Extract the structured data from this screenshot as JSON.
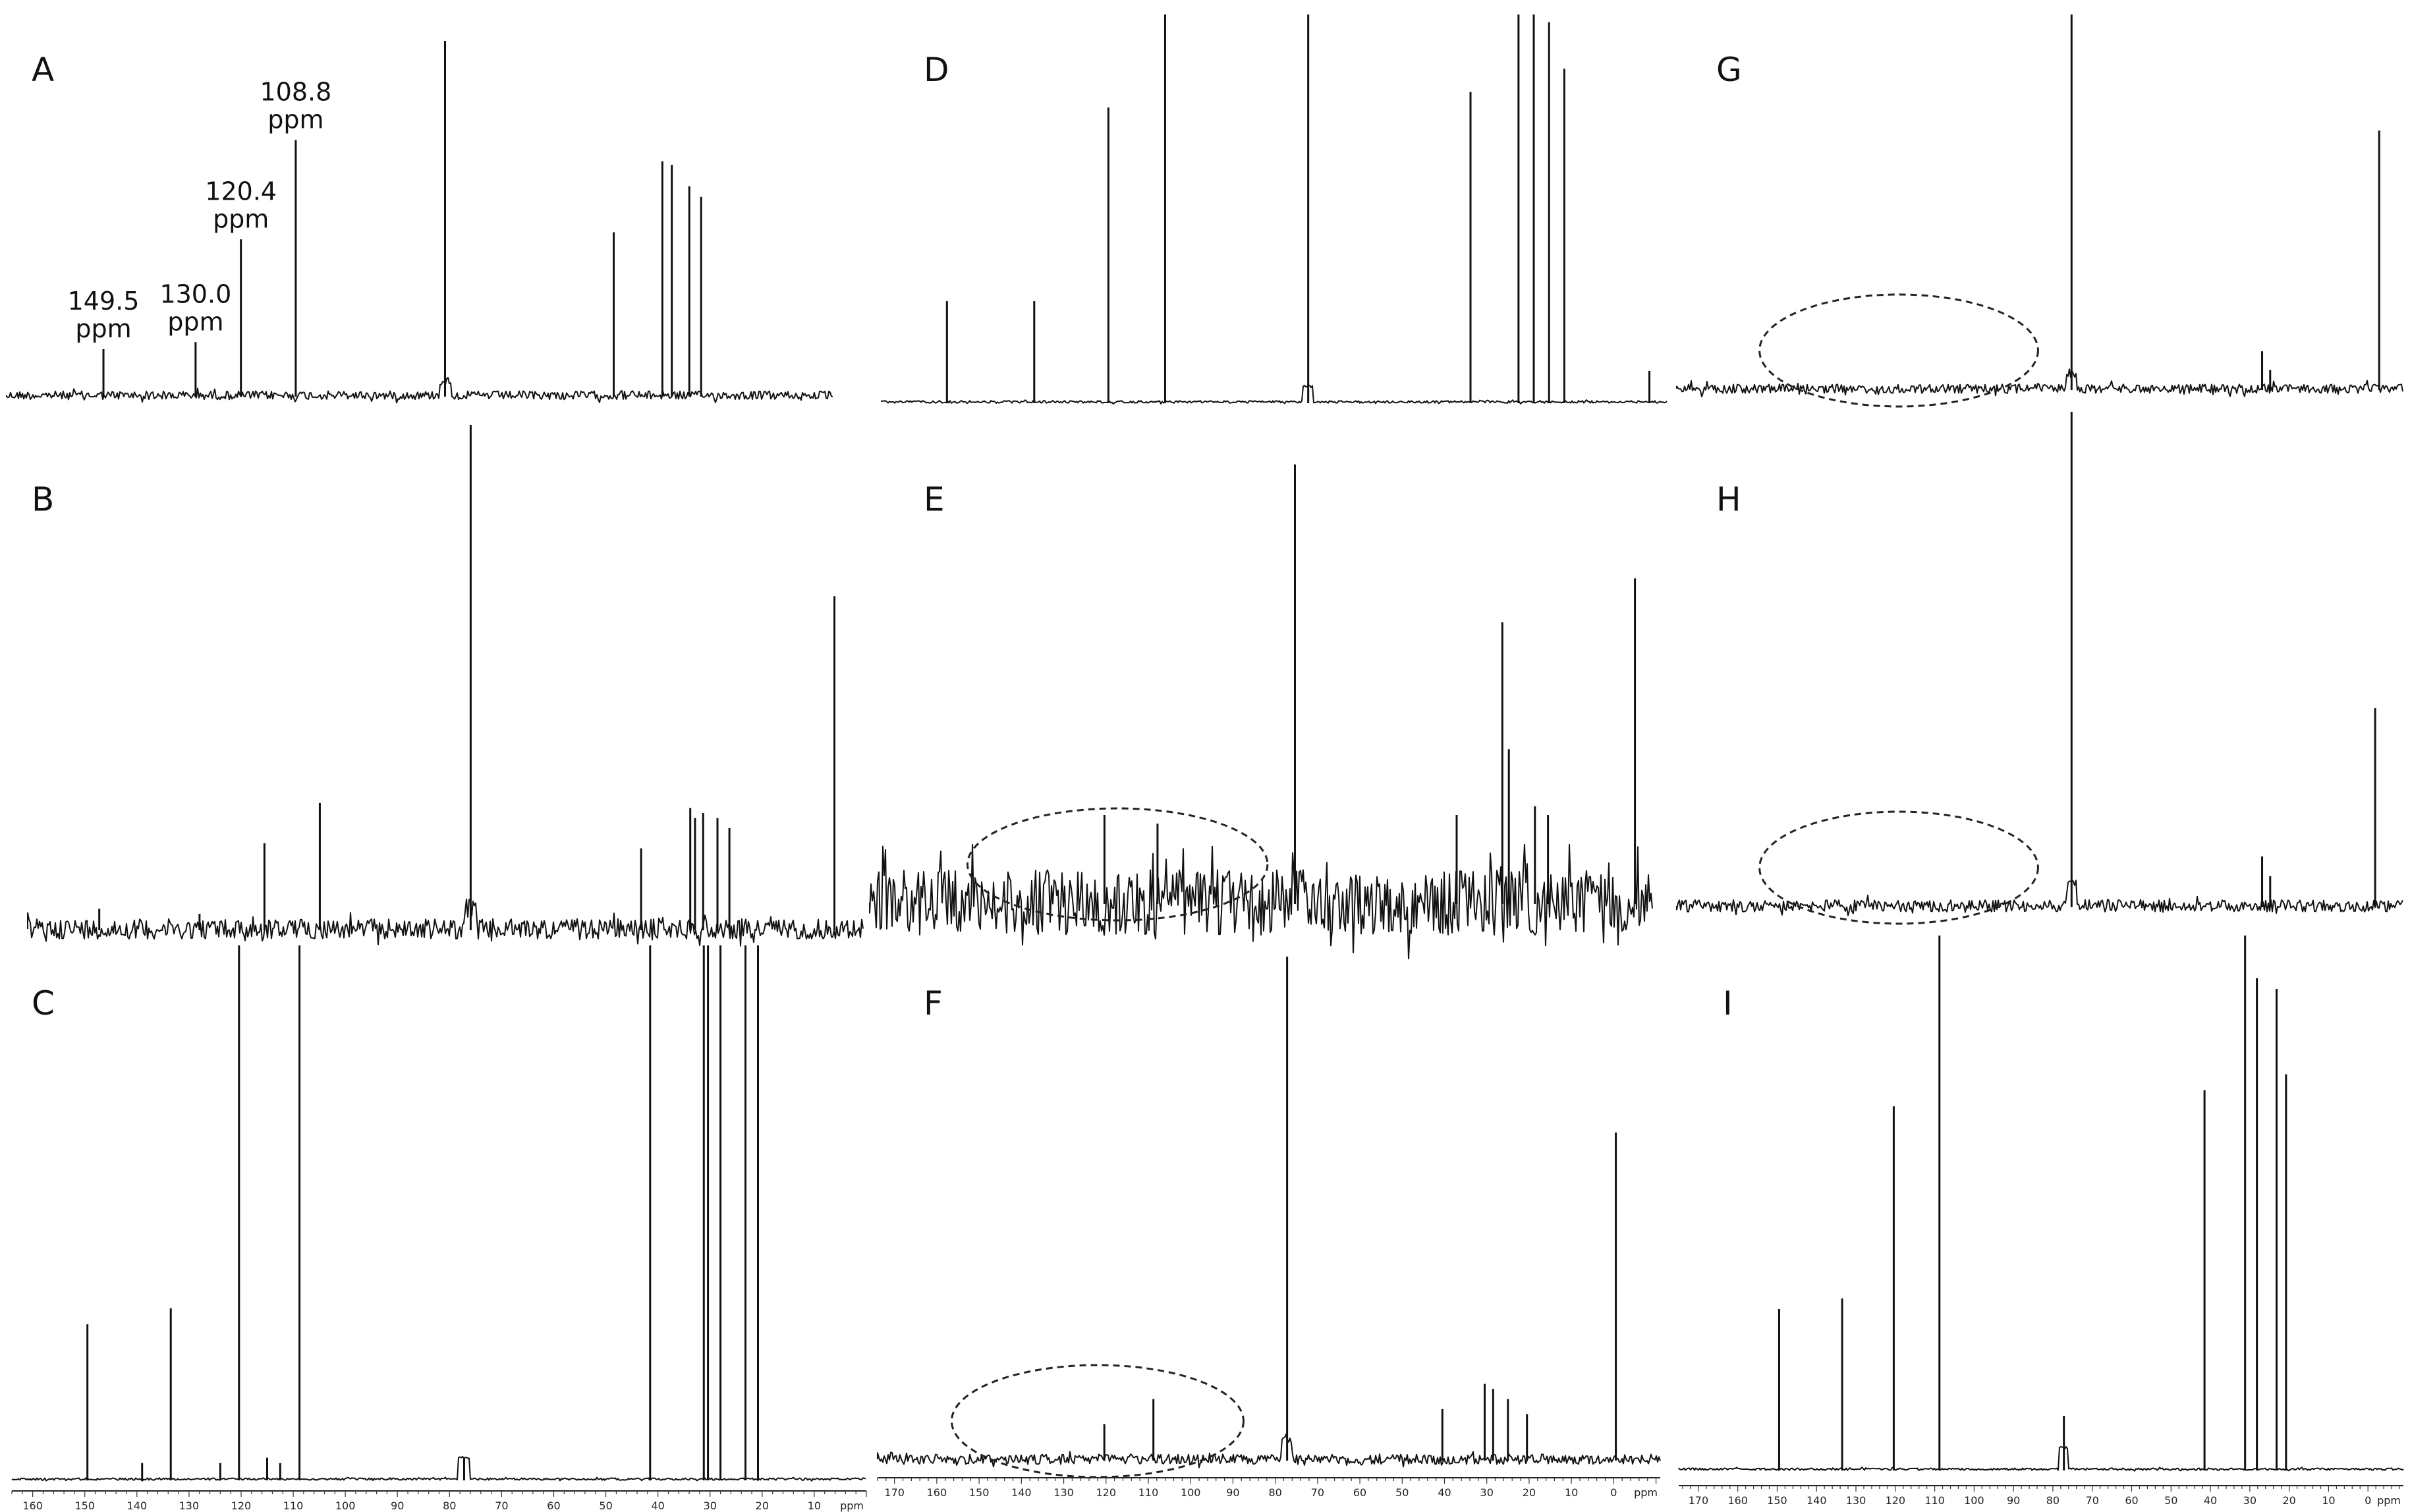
{
  "figure": {
    "background": "#ffffff",
    "line_color": "#111111"
  },
  "chart_data": [
    {
      "type": "line",
      "panel": "A",
      "title": "",
      "xlabel": "",
      "ylabel": "",
      "x_direction": "descending",
      "x_range": [
        170,
        -5
      ],
      "noise": 0.012,
      "solvent_peak": 77.2,
      "peaks": [
        {
          "ppm": 149.5,
          "height": 0.13
        },
        {
          "ppm": 130.0,
          "height": 0.15
        },
        {
          "ppm": 120.4,
          "height": 0.44
        },
        {
          "ppm": 108.8,
          "height": 0.72
        },
        {
          "ppm": 77.2,
          "height": 1.0
        },
        {
          "ppm": 41.5,
          "height": 0.46
        },
        {
          "ppm": 31.2,
          "height": 0.66
        },
        {
          "ppm": 29.2,
          "height": 0.65
        },
        {
          "ppm": 25.5,
          "height": 0.59
        },
        {
          "ppm": 23.0,
          "height": 0.56
        }
      ],
      "labels": [
        {
          "ppm": 149.5,
          "text": [
            "149.5",
            "ppm"
          ]
        },
        {
          "ppm": 130.0,
          "text": [
            "130.0",
            "ppm"
          ]
        },
        {
          "ppm": 120.4,
          "text": [
            "120.4",
            "ppm"
          ]
        },
        {
          "ppm": 108.8,
          "text": [
            "108.8",
            "ppm"
          ]
        }
      ],
      "axis": null,
      "ellipse": null
    },
    {
      "type": "line",
      "panel": "B",
      "title": "",
      "xlabel": "",
      "ylabel": "",
      "x_direction": "descending",
      "x_range": [
        170,
        -5
      ],
      "noise": 0.02,
      "solvent_peak": 77.2,
      "peaks": [
        {
          "ppm": 155.0,
          "height": 0.04
        },
        {
          "ppm": 134.0,
          "height": 0.03
        },
        {
          "ppm": 120.4,
          "height": 0.17
        },
        {
          "ppm": 108.8,
          "height": 0.25
        },
        {
          "ppm": 77.2,
          "height": 1.0
        },
        {
          "ppm": 41.5,
          "height": 0.16
        },
        {
          "ppm": 31.2,
          "height": 0.24
        },
        {
          "ppm": 30.2,
          "height": 0.22
        },
        {
          "ppm": 28.5,
          "height": 0.23
        },
        {
          "ppm": 25.5,
          "height": 0.22
        },
        {
          "ppm": 23.0,
          "height": 0.2
        },
        {
          "ppm": 1.0,
          "height": 0.66
        }
      ],
      "labels": [],
      "axis": null,
      "ellipse": null
    },
    {
      "type": "line",
      "panel": "C",
      "title": "",
      "xlabel": "",
      "ylabel": "",
      "x_direction": "descending",
      "x_range": [
        164,
        0
      ],
      "noise": 0.002,
      "solvent_peak": 77.2,
      "peaks": [
        {
          "ppm": 149.5,
          "height": 0.29
        },
        {
          "ppm": 139.0,
          "height": 0.03
        },
        {
          "ppm": 133.5,
          "height": 0.32
        },
        {
          "ppm": 124.0,
          "height": 0.03
        },
        {
          "ppm": 120.4,
          "height": 1.0
        },
        {
          "ppm": 115.0,
          "height": 0.04
        },
        {
          "ppm": 112.5,
          "height": 0.03
        },
        {
          "ppm": 108.8,
          "height": 1.0
        },
        {
          "ppm": 77.2,
          "height": 0.04
        },
        {
          "ppm": 41.5,
          "height": 1.0
        },
        {
          "ppm": 31.2,
          "height": 1.0
        },
        {
          "ppm": 30.4,
          "height": 1.0
        },
        {
          "ppm": 28.0,
          "height": 1.0
        },
        {
          "ppm": 23.2,
          "height": 1.0
        },
        {
          "ppm": 20.8,
          "height": 1.0
        }
      ],
      "labels": [],
      "axis": {
        "unit": "ppm",
        "ticks": [
          160,
          150,
          140,
          130,
          120,
          110,
          100,
          90,
          80,
          70,
          60,
          50,
          40,
          30,
          20,
          10
        ]
      },
      "ellipse": null
    },
    {
      "type": "line",
      "panel": "D",
      "title": "",
      "xlabel": "",
      "ylabel": "",
      "x_direction": "descending",
      "x_range": [
        175,
        -5
      ],
      "noise": 0.003,
      "solvent_peak": 77.2,
      "peaks": [
        {
          "ppm": 160.0,
          "height": 0.26
        },
        {
          "ppm": 140.0,
          "height": 0.26
        },
        {
          "ppm": 123.0,
          "height": 0.76
        },
        {
          "ppm": 110.0,
          "height": 1.0
        },
        {
          "ppm": 77.2,
          "height": 1.0
        },
        {
          "ppm": 40.0,
          "height": 0.8
        },
        {
          "ppm": 29.0,
          "height": 1.0
        },
        {
          "ppm": 25.5,
          "height": 1.0
        },
        {
          "ppm": 22.0,
          "height": 0.98
        },
        {
          "ppm": 18.5,
          "height": 0.86
        },
        {
          "ppm": -1.0,
          "height": 0.08
        }
      ],
      "labels": [],
      "axis": null,
      "ellipse": null
    },
    {
      "type": "line",
      "panel": "E",
      "title": "",
      "xlabel": "",
      "ylabel": "",
      "x_direction": "descending",
      "x_range": [
        175,
        -5
      ],
      "noise": 0.075,
      "solvent_peak": 77.2,
      "peaks": [
        {
          "ppm": 121.0,
          "height": 0.2
        },
        {
          "ppm": 108.8,
          "height": 0.18
        },
        {
          "ppm": 77.2,
          "height": 1.0
        },
        {
          "ppm": 40.0,
          "height": 0.2
        },
        {
          "ppm": 29.5,
          "height": 0.64
        },
        {
          "ppm": 28.0,
          "height": 0.35
        },
        {
          "ppm": 22.0,
          "height": 0.22
        },
        {
          "ppm": 19.0,
          "height": 0.2
        },
        {
          "ppm": -1.0,
          "height": 0.74
        }
      ],
      "labels": [],
      "axis": null,
      "ellipse": {
        "center_ppm": 118,
        "span_ppm": 60
      }
    },
    {
      "type": "line",
      "panel": "F",
      "title": "",
      "xlabel": "",
      "ylabel": "",
      "x_direction": "descending",
      "x_range": [
        174,
        -11
      ],
      "noise": 0.01,
      "solvent_peak": 77.2,
      "peaks": [
        {
          "ppm": 120.4,
          "height": 0.07
        },
        {
          "ppm": 108.8,
          "height": 0.12
        },
        {
          "ppm": 77.2,
          "height": 1.0
        },
        {
          "ppm": 40.5,
          "height": 0.1
        },
        {
          "ppm": 30.5,
          "height": 0.15
        },
        {
          "ppm": 28.5,
          "height": 0.14
        },
        {
          "ppm": 25.0,
          "height": 0.12
        },
        {
          "ppm": 20.5,
          "height": 0.09
        },
        {
          "ppm": -0.5,
          "height": 0.65
        }
      ],
      "labels": [],
      "axis": {
        "unit": "ppm",
        "ticks": [
          170,
          160,
          150,
          140,
          130,
          120,
          110,
          100,
          90,
          80,
          70,
          60,
          50,
          40,
          30,
          20,
          10,
          0
        ]
      },
      "ellipse": {
        "center_ppm": 122,
        "span_ppm": 60
      }
    },
    {
      "type": "line",
      "panel": "G",
      "title": "",
      "xlabel": "",
      "ylabel": "",
      "x_direction": "descending",
      "x_range": [
        175,
        -5
      ],
      "noise": 0.012,
      "solvent_peak": 77.2,
      "peaks": [
        {
          "ppm": 77.2,
          "height": 1.0
        },
        {
          "ppm": 30.0,
          "height": 0.1
        },
        {
          "ppm": 28.0,
          "height": 0.05
        },
        {
          "ppm": 1.0,
          "height": 0.69
        }
      ],
      "labels": [],
      "axis": null,
      "ellipse": {
        "center_ppm": 120,
        "span_ppm": 60
      }
    },
    {
      "type": "line",
      "panel": "H",
      "title": "",
      "xlabel": "",
      "ylabel": "",
      "x_direction": "descending",
      "x_range": [
        175,
        -5
      ],
      "noise": 0.012,
      "solvent_peak": 77.2,
      "peaks": [
        {
          "ppm": 77.2,
          "height": 1.0
        },
        {
          "ppm": 30.0,
          "height": 0.1
        },
        {
          "ppm": 28.0,
          "height": 0.06
        },
        {
          "ppm": 2.0,
          "height": 0.4
        }
      ],
      "labels": [],
      "axis": null,
      "ellipse": {
        "center_ppm": 120,
        "span_ppm": 60
      }
    },
    {
      "type": "line",
      "panel": "I",
      "title": "",
      "xlabel": "",
      "ylabel": "",
      "x_direction": "descending",
      "x_range": [
        175,
        -9
      ],
      "noise": 0.002,
      "solvent_peak": 77.2,
      "peaks": [
        {
          "ppm": 149.5,
          "height": 0.3
        },
        {
          "ppm": 133.5,
          "height": 0.32
        },
        {
          "ppm": 120.4,
          "height": 0.68
        },
        {
          "ppm": 108.8,
          "height": 1.0
        },
        {
          "ppm": 77.2,
          "height": 0.1
        },
        {
          "ppm": 41.5,
          "height": 0.71
        },
        {
          "ppm": 31.2,
          "height": 1.0
        },
        {
          "ppm": 28.2,
          "height": 0.92
        },
        {
          "ppm": 23.2,
          "height": 0.9
        },
        {
          "ppm": 20.8,
          "height": 0.74
        }
      ],
      "labels": [],
      "axis": {
        "unit": "ppm",
        "ticks": [
          170,
          160,
          150,
          140,
          130,
          120,
          110,
          100,
          90,
          80,
          70,
          60,
          50,
          40,
          30,
          20,
          10,
          0
        ]
      },
      "ellipse": null
    }
  ]
}
